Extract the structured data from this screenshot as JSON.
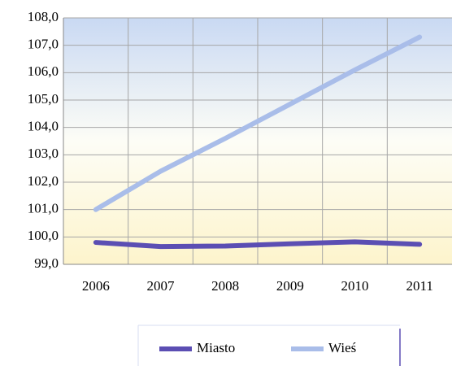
{
  "chart_data": {
    "type": "line",
    "categories": [
      "2006",
      "2007",
      "2008",
      "2009",
      "2010",
      "2011"
    ],
    "series": [
      {
        "name": "Miasto",
        "color": "#5b4eb3",
        "values": [
          99.8,
          99.65,
          99.67,
          99.75,
          99.82,
          99.73
        ]
      },
      {
        "name": "Wieś",
        "color": "#a9bde9",
        "values": [
          101.0,
          102.4,
          103.6,
          104.85,
          106.1,
          107.3
        ]
      }
    ],
    "ylim": [
      99,
      108
    ],
    "yticks": [
      {
        "value": 99,
        "label": "99,0"
      },
      {
        "value": 100,
        "label": "100,0"
      },
      {
        "value": 101,
        "label": "101,0"
      },
      {
        "value": 102,
        "label": "102,0"
      },
      {
        "value": 103,
        "label": "103,0"
      },
      {
        "value": 104,
        "label": "104,0"
      },
      {
        "value": 105,
        "label": "105,0"
      },
      {
        "value": 106,
        "label": "106,0"
      },
      {
        "value": 107,
        "label": "107,0"
      },
      {
        "value": 108,
        "label": "108,0"
      }
    ],
    "grid": true,
    "legend": "bottom"
  }
}
